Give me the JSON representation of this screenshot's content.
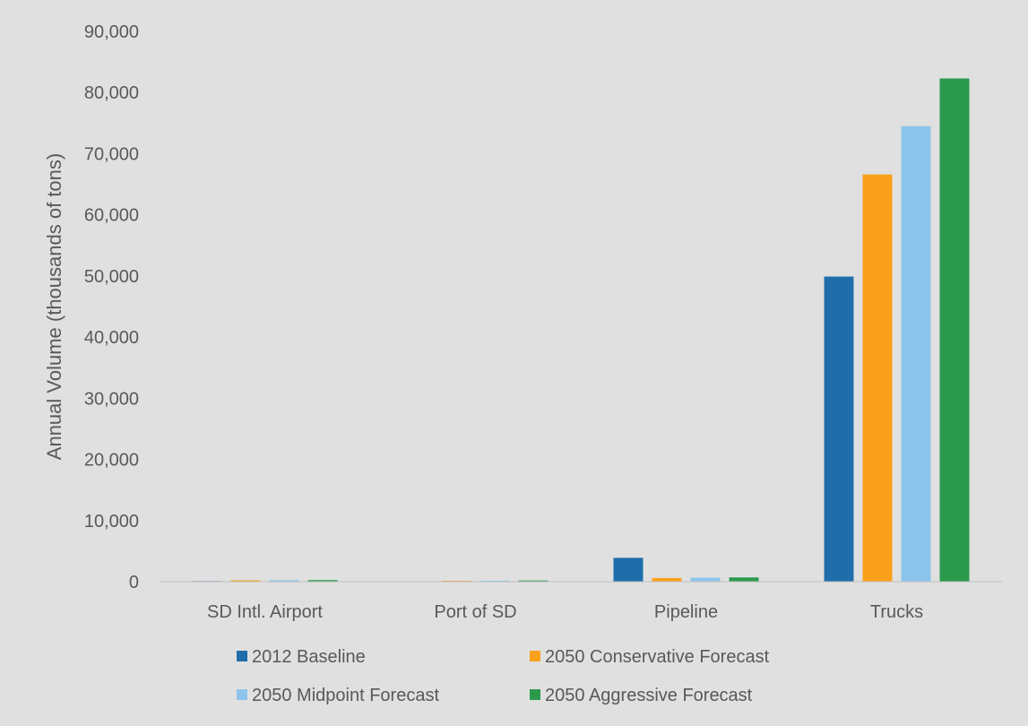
{
  "colors": {
    "background": "#e0e0e0",
    "text": "#595959",
    "axis_line": "#bfbfbf"
  },
  "chart_data": {
    "type": "bar",
    "title": "",
    "xlabel": "",
    "ylabel": "Annual Volume (thousands of tons)",
    "ylim": [
      0,
      90000
    ],
    "yticks": [
      0,
      10000,
      20000,
      30000,
      40000,
      50000,
      60000,
      70000,
      80000,
      90000
    ],
    "ytick_labels": [
      "0",
      "10,000",
      "20,000",
      "30,000",
      "40,000",
      "50,000",
      "60,000",
      "70,000",
      "80,000",
      "90,000"
    ],
    "grid": false,
    "legend_position": "bottom",
    "categories": [
      "SD Intl. Airport",
      "Port of SD",
      "Pipeline",
      "Trucks"
    ],
    "series": [
      {
        "name": "2012 Baseline",
        "color": "#1f6eab",
        "values": [
          100,
          50,
          3900,
          49900
        ]
      },
      {
        "name": "2050 Conservative Forecast",
        "color": "#f9a11b",
        "values": [
          220,
          150,
          600,
          66600
        ]
      },
      {
        "name": "2050 Midpoint Forecast",
        "color": "#8dc4ec",
        "values": [
          240,
          170,
          650,
          74500
        ]
      },
      {
        "name": "2050 Aggressive Forecast",
        "color": "#2b9a4d",
        "values": [
          260,
          190,
          700,
          82300
        ]
      }
    ]
  }
}
